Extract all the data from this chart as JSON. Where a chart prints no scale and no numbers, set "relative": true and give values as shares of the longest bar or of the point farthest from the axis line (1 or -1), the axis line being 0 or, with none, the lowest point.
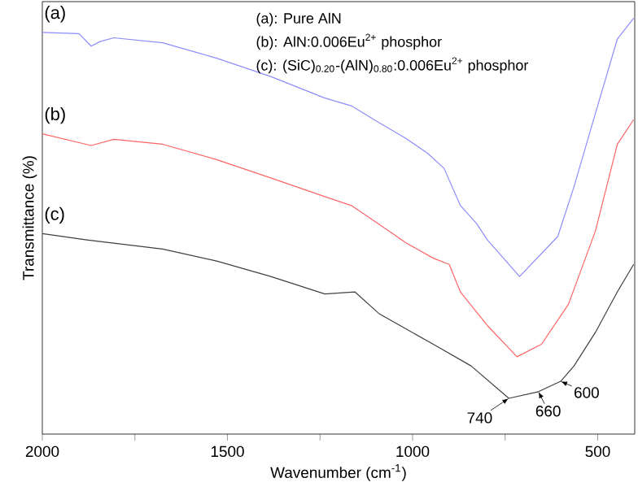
{
  "chart_data": {
    "type": "line",
    "relative": true,
    "xlabel": "Wavenumber (cm$^{-1}$)",
    "ylabel": "Transmittance (%)",
    "xlim": [
      2000,
      400
    ],
    "xticks": [
      2000,
      {
        "value": 1750,
        "label": null
      },
      1500,
      {
        "value": 1250,
        "label": null
      },
      1000,
      {
        "value": 750,
        "label": null
      },
      500
    ],
    "marker": "none",
    "line_style": "solid",
    "series": [
      {
        "name": "(a)",
        "color": "#8c8cff",
        "x": [
          2000,
          1901,
          1868,
          1844,
          1807,
          1675,
          1529,
          1383,
          1237,
          1164,
          1091,
          1018,
          959,
          915,
          871,
          827,
          798,
          711,
          608,
          564,
          506,
          447,
          403
        ],
        "values": [
          0.966,
          0.963,
          0.933,
          0.944,
          0.953,
          0.941,
          0.904,
          0.86,
          0.808,
          0.789,
          0.749,
          0.711,
          0.675,
          0.639,
          0.55,
          0.506,
          0.467,
          0.379,
          0.475,
          0.595,
          0.772,
          0.95,
          1
        ]
      },
      {
        "name": "(b)",
        "color": "#ff6464",
        "x": [
          2000,
          1868,
          1807,
          1675,
          1529,
          1383,
          1237,
          1164,
          1091,
          1047,
          1018,
          944,
          901,
          871,
          798,
          718,
          652,
          579,
          506,
          447,
          403
        ],
        "values": [
          0.722,
          0.694,
          0.709,
          0.697,
          0.66,
          0.616,
          0.571,
          0.549,
          0.505,
          0.478,
          0.46,
          0.423,
          0.408,
          0.342,
          0.261,
          0.186,
          0.216,
          0.312,
          0.489,
          0.697,
          0.756
        ]
      },
      {
        "name": "(c)",
        "color": "#404040",
        "x": [
          2000,
          1880,
          1675,
          1529,
          1383,
          1237,
          1156,
          1091,
          1018,
          944,
          842,
          740,
          660,
          600,
          564,
          506,
          447,
          403
        ],
        "values": [
          0.482,
          0.467,
          0.445,
          0.416,
          0.379,
          0.337,
          0.342,
          0.29,
          0.253,
          0.216,
          0.164,
          0.086,
          0.102,
          0.127,
          0.164,
          0.245,
          0.342,
          0.408
        ]
      }
    ],
    "annotations": [
      "(a): Pure AlN",
      "(b): AlN:0.006Eu$^{2+}$ phosphor",
      "(c): (SiC)$_{0.20}$-(AlN)$_{0.80}$:0.006Eu$^{2+}$ phosphor",
      {
        "text": "740",
        "x": 740,
        "y": 0.086
      },
      {
        "text": "660",
        "x": 660,
        "y": 0.102
      },
      {
        "text": "600",
        "x": 600,
        "y": 0.127
      }
    ]
  }
}
